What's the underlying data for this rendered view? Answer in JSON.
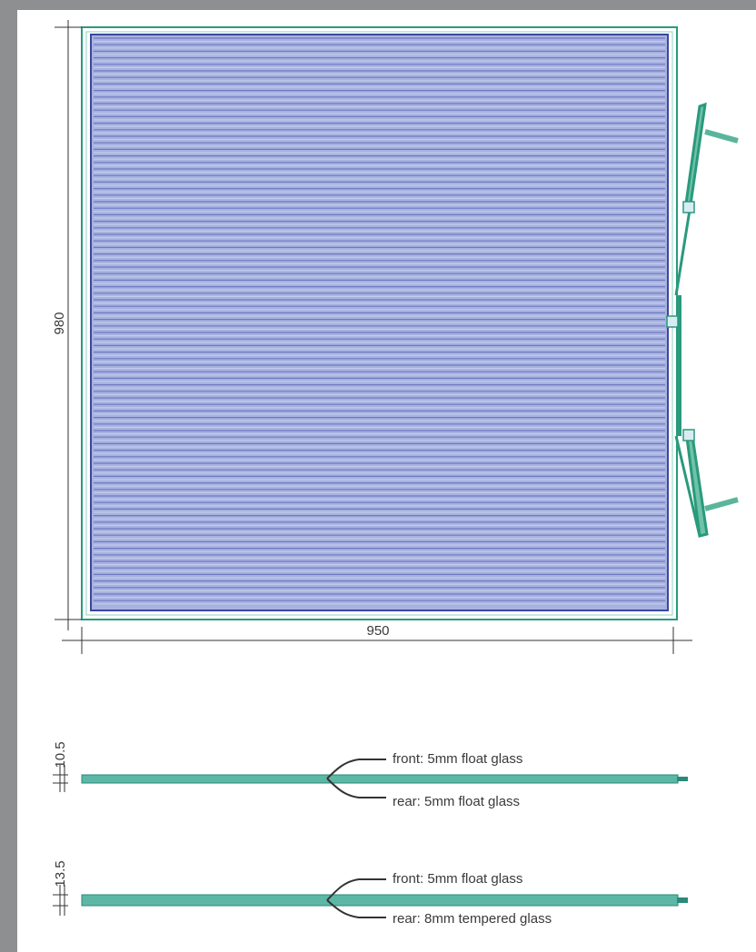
{
  "panel_front_view": {
    "height_dimension": "980",
    "width_dimension": "950"
  },
  "section_a": {
    "thickness_dimension": "10.5",
    "front_note": "front: 5mm float glass",
    "rear_note": "rear: 5mm float glass"
  },
  "section_b": {
    "thickness_dimension": "13.5",
    "front_note": "front: 5mm float glass",
    "rear_note": "rear: 8mm tempered glass"
  },
  "colors": {
    "sidebar": "#8e8f91",
    "frame": "#2a9a7c",
    "absorber": "#a7b2df",
    "absorber_line": "#7d86c8",
    "glass_section": "#5cb7a6",
    "dimension_line": "#333333"
  }
}
